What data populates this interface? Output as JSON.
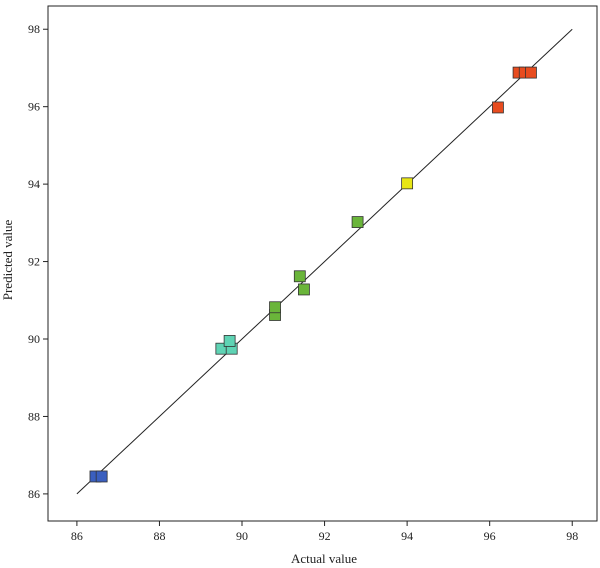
{
  "chart_data": {
    "type": "scatter",
    "title": "",
    "xlabel": "Actual value",
    "ylabel": "Predicted value",
    "xlim": [
      85.3,
      98.6
    ],
    "ylim": [
      85.3,
      98.6
    ],
    "xticks": [
      "86",
      "88",
      "90",
      "92",
      "94",
      "96",
      "98"
    ],
    "yticks": [
      "86",
      "88",
      "90",
      "92",
      "94",
      "96",
      "98"
    ],
    "grid": false,
    "reference_line": {
      "x": [
        86.0,
        98.0
      ],
      "y": [
        86.0,
        98.0
      ]
    },
    "points": [
      {
        "x": 86.45,
        "y": 86.45,
        "color": "#3a5fbf"
      },
      {
        "x": 86.6,
        "y": 86.45,
        "color": "#3a5fbf"
      },
      {
        "x": 89.5,
        "y": 89.75,
        "color": "#5fd3b4"
      },
      {
        "x": 89.75,
        "y": 89.75,
        "color": "#5fd3b4"
      },
      {
        "x": 89.7,
        "y": 89.95,
        "color": "#5fd3b4"
      },
      {
        "x": 90.8,
        "y": 90.62,
        "color": "#6ab53a"
      },
      {
        "x": 90.8,
        "y": 90.82,
        "color": "#6ab53a"
      },
      {
        "x": 91.4,
        "y": 91.62,
        "color": "#6ab53a"
      },
      {
        "x": 91.5,
        "y": 91.28,
        "color": "#6ab53a"
      },
      {
        "x": 92.8,
        "y": 93.02,
        "color": "#6ab53a"
      },
      {
        "x": 94.0,
        "y": 94.02,
        "color": "#e8e615"
      },
      {
        "x": 96.2,
        "y": 95.98,
        "color": "#e84c1f"
      },
      {
        "x": 96.7,
        "y": 96.88,
        "color": "#e84c1f"
      },
      {
        "x": 96.85,
        "y": 96.88,
        "color": "#e84c1f"
      },
      {
        "x": 97.0,
        "y": 96.88,
        "color": "#e84c1f"
      }
    ]
  }
}
